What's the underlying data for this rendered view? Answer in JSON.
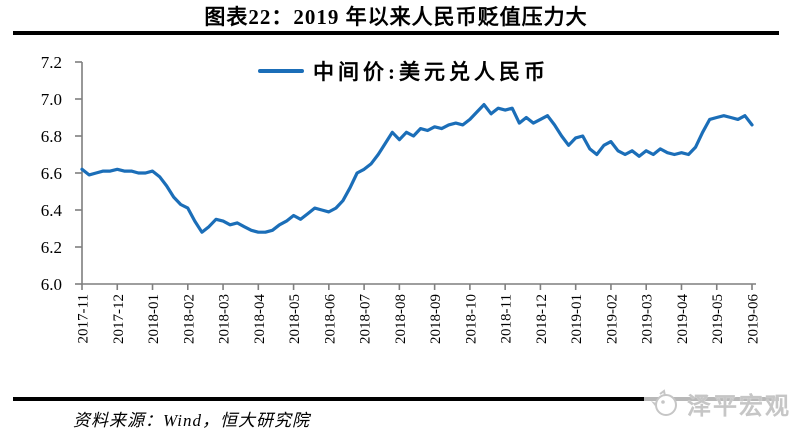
{
  "header": {
    "title": "图表22：2019 年以来人民币贬值压力大"
  },
  "chart_data": {
    "type": "line",
    "title": "图表22：2019 年以来人民币贬值压力大",
    "legend_position": "top-center",
    "grid": false,
    "xlabel": "",
    "ylabel": "",
    "ylim": [
      6.0,
      7.2
    ],
    "y_tick_labels": [
      "6.0",
      "6.2",
      "6.4",
      "6.6",
      "6.8",
      "7.0",
      "7.2"
    ],
    "x_tick_labels": [
      "2017-11",
      "2017-12",
      "2018-01",
      "2018-02",
      "2018-03",
      "2018-04",
      "2018-05",
      "2018-06",
      "2018-07",
      "2018-08",
      "2018-09",
      "2018-10",
      "2018-11",
      "2018-12",
      "2019-01",
      "2019-02",
      "2019-03",
      "2019-04",
      "2019-05",
      "2019-06"
    ],
    "x_start": "2017-11",
    "x_interval_months": 0.2,
    "series": [
      {
        "name": "中间价:美元兑人民币",
        "color": "#1B6EB8",
        "values": [
          6.62,
          6.59,
          6.6,
          6.61,
          6.61,
          6.62,
          6.61,
          6.61,
          6.6,
          6.6,
          6.61,
          6.58,
          6.53,
          6.47,
          6.43,
          6.41,
          6.34,
          6.28,
          6.31,
          6.35,
          6.34,
          6.32,
          6.33,
          6.31,
          6.29,
          6.28,
          6.28,
          6.29,
          6.32,
          6.34,
          6.37,
          6.35,
          6.38,
          6.41,
          6.4,
          6.39,
          6.41,
          6.45,
          6.52,
          6.6,
          6.62,
          6.65,
          6.7,
          6.76,
          6.82,
          6.78,
          6.82,
          6.8,
          6.84,
          6.83,
          6.85,
          6.84,
          6.86,
          6.87,
          6.86,
          6.89,
          6.93,
          6.97,
          6.92,
          6.95,
          6.94,
          6.95,
          6.87,
          6.9,
          6.87,
          6.89,
          6.91,
          6.86,
          6.8,
          6.75,
          6.79,
          6.8,
          6.73,
          6.7,
          6.75,
          6.77,
          6.72,
          6.7,
          6.72,
          6.69,
          6.72,
          6.7,
          6.73,
          6.71,
          6.7,
          6.71,
          6.7,
          6.74,
          6.82,
          6.89,
          6.9,
          6.91,
          6.9,
          6.89,
          6.91,
          6.86
        ]
      }
    ]
  },
  "footer": {
    "source": "资料来源：Wind，恒大研究院",
    "watermark": "泽平宏观"
  },
  "colors": {
    "line": "#1B6EB8",
    "axis": "#7f7f7f",
    "rule": "#000000",
    "watermark": "#c6c6c6"
  }
}
